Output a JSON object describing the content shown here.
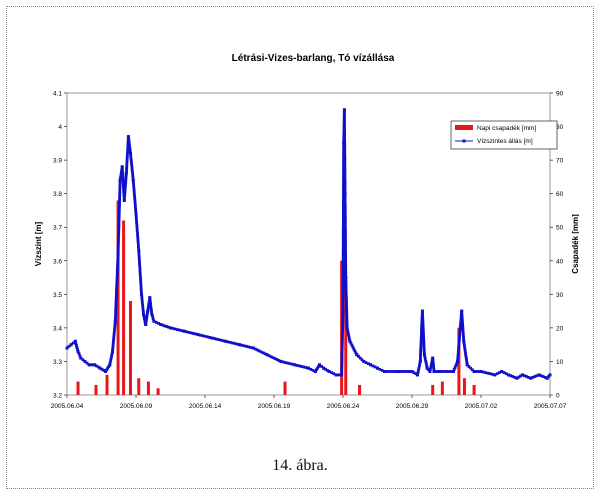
{
  "caption": "14. ábra.",
  "chart_data": {
    "type": "line",
    "title": "Létrási-Vizes-barlang, Tó vízállása",
    "ylabel_left": "Vízszint [m]",
    "ylabel_right": "Csapadék [mm]",
    "ylim_left": [
      3.2,
      4.1
    ],
    "yticks_left": [
      "3.2",
      "3.3",
      "3.4",
      "3.5",
      "3.6",
      "3.7",
      "3.8",
      "3.9",
      "4",
      "4.1"
    ],
    "ylim_right": [
      0,
      90
    ],
    "yticks_right": [
      "0",
      "10",
      "20",
      "30",
      "40",
      "50",
      "60",
      "70",
      "80",
      "90"
    ],
    "xlim": [
      0,
      35
    ],
    "xticks": [
      {
        "x": 0,
        "label": "2005.06.04"
      },
      {
        "x": 5,
        "label": "2005.06.09"
      },
      {
        "x": 10,
        "label": "2005.06.14"
      },
      {
        "x": 15,
        "label": "2005.06.19"
      },
      {
        "x": 20,
        "label": "2005.06.24"
      },
      {
        "x": 25,
        "label": "2005.06.29"
      },
      {
        "x": 30,
        "label": "2005.07.02"
      },
      {
        "x": 35,
        "label": "2005.07.07"
      }
    ],
    "grid": true,
    "legend_position": "top-right",
    "series": [
      {
        "name": "Napi csapadék [mm]",
        "kind": "bar",
        "axis": "right",
        "color": "#e8151b",
        "x": [
          0.8,
          2.1,
          2.9,
          3.7,
          4.1,
          4.6,
          5.2,
          5.9,
          6.6,
          15.8,
          19.9,
          20.2,
          21.2,
          26.5,
          27.2,
          28.4,
          28.8,
          29.5
        ],
        "values": [
          4,
          3,
          6,
          58,
          52,
          28,
          5,
          4,
          2,
          4,
          40,
          34,
          3,
          3,
          4,
          20,
          5,
          3
        ]
      },
      {
        "name": "Vízszintes állás [m]",
        "kind": "line",
        "axis": "left",
        "color": "#1010cc",
        "points": [
          [
            0.0,
            3.34
          ],
          [
            0.3,
            3.35
          ],
          [
            0.6,
            3.36
          ],
          [
            0.8,
            3.33
          ],
          [
            1.0,
            3.31
          ],
          [
            1.3,
            3.3
          ],
          [
            1.6,
            3.29
          ],
          [
            2.0,
            3.29
          ],
          [
            2.4,
            3.28
          ],
          [
            2.8,
            3.27
          ],
          [
            3.1,
            3.29
          ],
          [
            3.3,
            3.33
          ],
          [
            3.5,
            3.42
          ],
          [
            3.7,
            3.62
          ],
          [
            3.85,
            3.84
          ],
          [
            4.0,
            3.88
          ],
          [
            4.15,
            3.78
          ],
          [
            4.3,
            3.86
          ],
          [
            4.45,
            3.97
          ],
          [
            4.6,
            3.92
          ],
          [
            4.8,
            3.84
          ],
          [
            5.0,
            3.74
          ],
          [
            5.2,
            3.63
          ],
          [
            5.4,
            3.5
          ],
          [
            5.55,
            3.44
          ],
          [
            5.7,
            3.41
          ],
          [
            5.85,
            3.45
          ],
          [
            6.0,
            3.49
          ],
          [
            6.15,
            3.44
          ],
          [
            6.3,
            3.42
          ],
          [
            6.8,
            3.41
          ],
          [
            7.5,
            3.4
          ],
          [
            8.5,
            3.39
          ],
          [
            9.5,
            3.38
          ],
          [
            10.5,
            3.37
          ],
          [
            11.5,
            3.36
          ],
          [
            12.5,
            3.35
          ],
          [
            13.5,
            3.34
          ],
          [
            14.5,
            3.32
          ],
          [
            15.5,
            3.3
          ],
          [
            16.5,
            3.29
          ],
          [
            17.5,
            3.28
          ],
          [
            18.0,
            3.27
          ],
          [
            18.3,
            3.29
          ],
          [
            18.6,
            3.28
          ],
          [
            19.0,
            3.27
          ],
          [
            19.5,
            3.26
          ],
          [
            19.9,
            3.26
          ],
          [
            20.0,
            3.45
          ],
          [
            20.05,
            3.95
          ],
          [
            20.1,
            4.05
          ],
          [
            20.15,
            3.8
          ],
          [
            20.2,
            3.55
          ],
          [
            20.3,
            3.4
          ],
          [
            20.5,
            3.36
          ],
          [
            21.0,
            3.32
          ],
          [
            21.5,
            3.3
          ],
          [
            22.0,
            3.29
          ],
          [
            22.5,
            3.28
          ],
          [
            23.0,
            3.27
          ],
          [
            24.0,
            3.27
          ],
          [
            25.0,
            3.27
          ],
          [
            25.4,
            3.26
          ],
          [
            25.6,
            3.3
          ],
          [
            25.75,
            3.45
          ],
          [
            25.9,
            3.32
          ],
          [
            26.1,
            3.28
          ],
          [
            26.3,
            3.27
          ],
          [
            26.5,
            3.31
          ],
          [
            26.6,
            3.27
          ],
          [
            27.0,
            3.27
          ],
          [
            28.0,
            3.27
          ],
          [
            28.3,
            3.3
          ],
          [
            28.5,
            3.4
          ],
          [
            28.6,
            3.45
          ],
          [
            28.75,
            3.36
          ],
          [
            29.0,
            3.29
          ],
          [
            29.5,
            3.27
          ],
          [
            30.0,
            3.27
          ],
          [
            31.0,
            3.26
          ],
          [
            31.5,
            3.27
          ],
          [
            32.0,
            3.26
          ],
          [
            32.6,
            3.25
          ],
          [
            33.0,
            3.26
          ],
          [
            33.6,
            3.25
          ],
          [
            34.2,
            3.26
          ],
          [
            34.8,
            3.25
          ],
          [
            35.0,
            3.26
          ]
        ]
      }
    ]
  }
}
